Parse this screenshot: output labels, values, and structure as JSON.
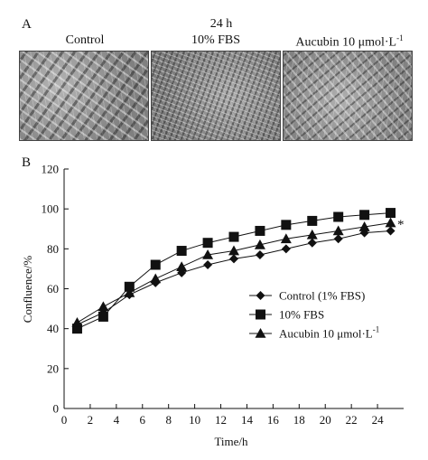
{
  "panel_a": {
    "letter": "A",
    "time_label": "24 h",
    "images": [
      {
        "title": "Control"
      },
      {
        "title": "10% FBS"
      },
      {
        "title": "Aucubin 10 μmol·L",
        "superscript": "-1"
      }
    ]
  },
  "panel_b": {
    "letter": "B"
  },
  "chart_data": {
    "type": "line",
    "xlabel": "Time/h",
    "ylabel": "Confluence/%",
    "xlim": [
      0,
      26
    ],
    "ylim": [
      0,
      120
    ],
    "xticks": [
      0,
      2,
      4,
      6,
      8,
      10,
      12,
      14,
      16,
      18,
      20,
      22,
      24
    ],
    "yticks": [
      0,
      20,
      40,
      60,
      80,
      100,
      120
    ],
    "grid": false,
    "legend_position": "center-right",
    "annotation": "*",
    "x": [
      1,
      3,
      5,
      7,
      9,
      11,
      13,
      15,
      17,
      19,
      21,
      23,
      25
    ],
    "series": [
      {
        "name": "Control (1% FBS)",
        "marker": "diamond",
        "values": [
          42,
          48,
          57,
          63,
          68,
          72,
          75,
          77,
          80,
          83,
          85,
          88,
          89
        ]
      },
      {
        "name": "10% FBS",
        "marker": "square",
        "values": [
          40,
          46,
          61,
          72,
          79,
          83,
          86,
          89,
          92,
          94,
          96,
          97,
          98
        ]
      },
      {
        "name": "Aucubin 10 μmol·L",
        "name_superscript": "-1",
        "marker": "triangle",
        "values": [
          43,
          51,
          58,
          65,
          71,
          77,
          79,
          82,
          85,
          87,
          89,
          91,
          93
        ]
      }
    ]
  }
}
